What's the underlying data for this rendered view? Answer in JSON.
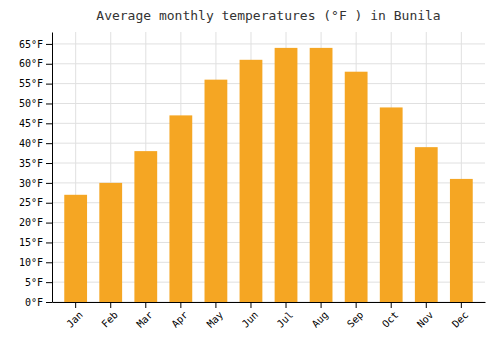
{
  "chart_data": {
    "type": "bar",
    "title": "Average monthly temperatures (°F ) in Bunila",
    "categories": [
      "Jan",
      "Feb",
      "Mar",
      "Apr",
      "May",
      "Jun",
      "Jul",
      "Aug",
      "Sep",
      "Oct",
      "Nov",
      "Dec"
    ],
    "values": [
      27,
      30,
      38,
      47,
      56,
      61,
      64,
      64,
      58,
      49,
      39,
      31
    ],
    "color": "#F5A623",
    "ylim": [
      0,
      68
    ],
    "yticks": [
      {
        "value": 0,
        "label": "0°F"
      },
      {
        "value": 5,
        "label": "5°F"
      },
      {
        "value": 10,
        "label": "10°F"
      },
      {
        "value": 15,
        "label": "15°F"
      },
      {
        "value": 20,
        "label": "20°F"
      },
      {
        "value": 25,
        "label": "25°F"
      },
      {
        "value": 30,
        "label": "30°F"
      },
      {
        "value": 35,
        "label": "35°F"
      },
      {
        "value": 40,
        "label": "40°F"
      },
      {
        "value": 45,
        "label": "45°F"
      },
      {
        "value": 50,
        "label": "50°F"
      },
      {
        "value": 55,
        "label": "55°F"
      },
      {
        "value": 60,
        "label": "60°F"
      },
      {
        "value": 65,
        "label": "65°F"
      }
    ],
    "grid": true
  }
}
